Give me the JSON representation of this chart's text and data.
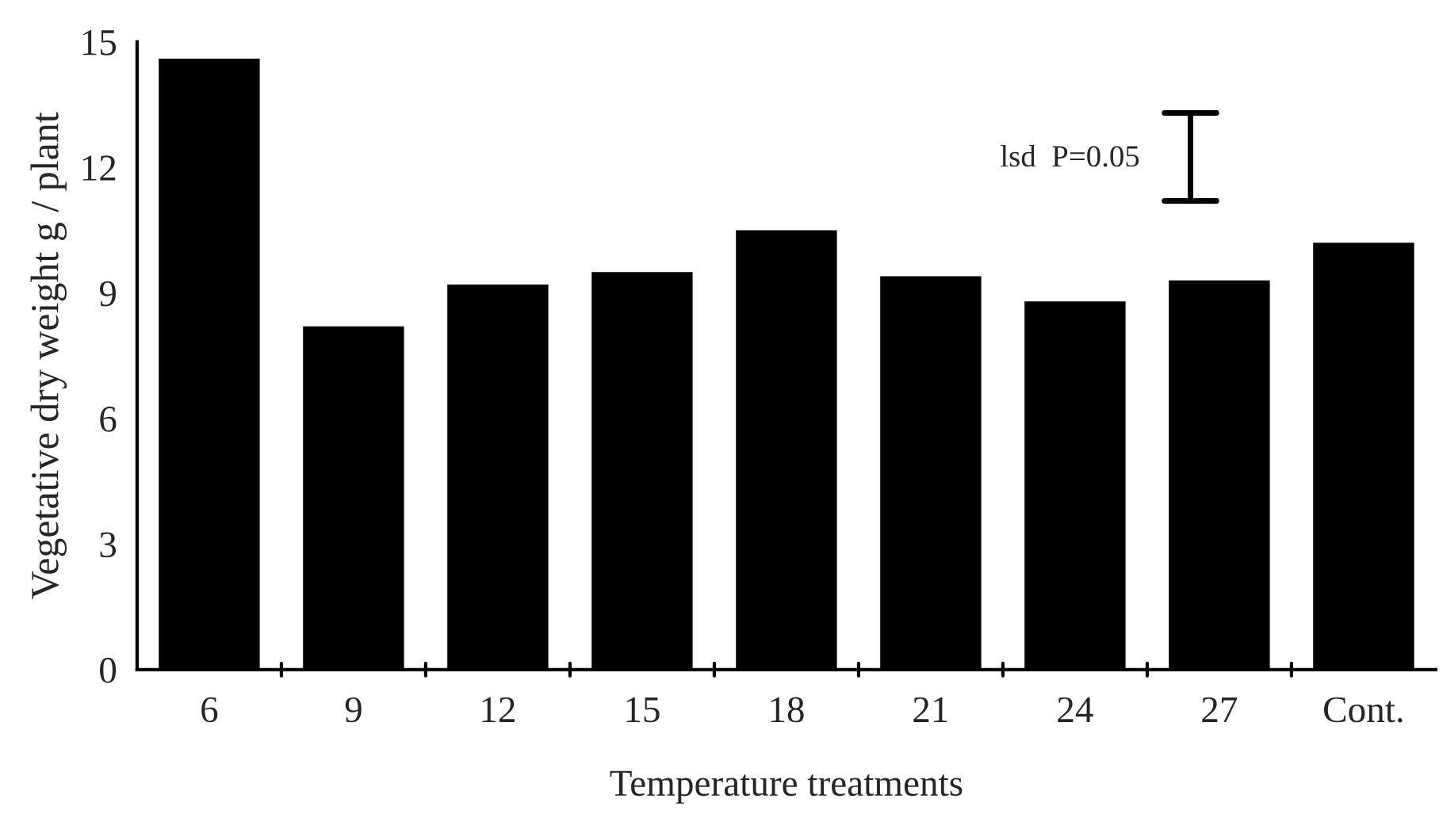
{
  "chart_data": {
    "type": "bar",
    "categories": [
      "6",
      "9",
      "12",
      "15",
      "18",
      "21",
      "24",
      "27",
      "Cont."
    ],
    "values": [
      14.6,
      8.2,
      9.2,
      9.5,
      10.5,
      9.4,
      8.8,
      9.3,
      10.2
    ],
    "color": "#000000",
    "xlabel": "Temperature treatments",
    "ylabel": "Vegetative dry weight g / plant",
    "ylim": [
      0,
      15
    ],
    "yticks": [
      0,
      3,
      6,
      9,
      12,
      15
    ],
    "annotations": [
      "lsd  P=0.05"
    ],
    "grid": false,
    "legend": false
  }
}
